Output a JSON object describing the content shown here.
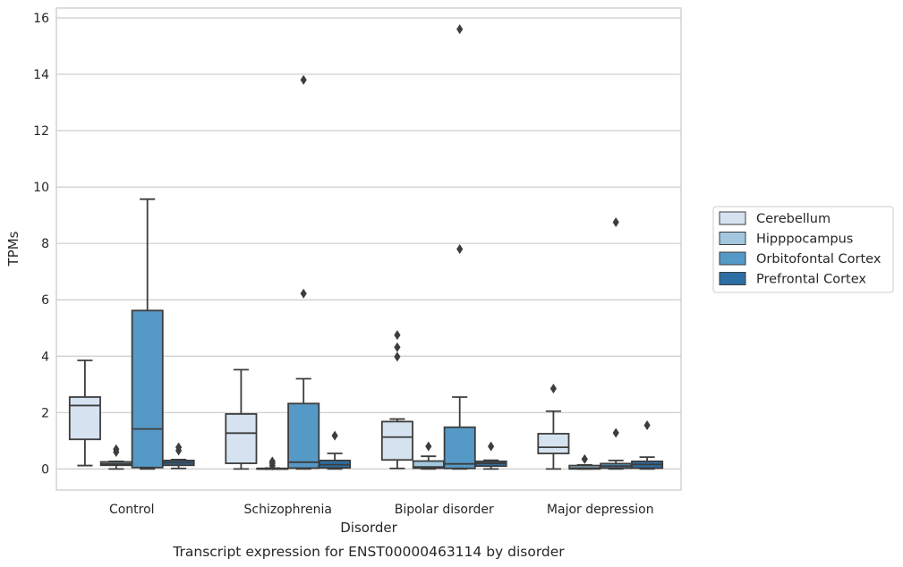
{
  "chart_data": {
    "type": "box",
    "caption": "Transcript expression for ENST00000463114 by disorder",
    "xlabel": "Disorder",
    "ylabel": "TPMs",
    "ylim": [
      -0.75,
      16.35
    ],
    "yticks": [
      0,
      2,
      4,
      6,
      8,
      10,
      12,
      14,
      16
    ],
    "grid": "horizontal",
    "legend_position": "right",
    "categories": [
      "Control",
      "Schizophrenia",
      "Bipolar disorder",
      "Major depression"
    ],
    "series": [
      {
        "name": "Cerebellum",
        "color": "#d5e3f0",
        "boxes": [
          {
            "whisker_low": 0.12,
            "q1": 1.05,
            "median": 2.25,
            "q3": 2.55,
            "whisker_high": 3.85,
            "outliers": []
          },
          {
            "whisker_low": 0.0,
            "q1": 0.2,
            "median": 1.27,
            "q3": 1.95,
            "whisker_high": 3.52,
            "outliers": []
          },
          {
            "whisker_low": 0.02,
            "q1": 0.32,
            "median": 1.13,
            "q3": 1.68,
            "whisker_high": 1.77,
            "outliers": [
              3.98,
              4.32,
              4.75
            ]
          },
          {
            "whisker_low": 0.0,
            "q1": 0.55,
            "median": 0.77,
            "q3": 1.25,
            "whisker_high": 2.05,
            "outliers": [
              2.85
            ]
          }
        ]
      },
      {
        "name": "Hipppocampus",
        "color": "#a2c7df",
        "boxes": [
          {
            "whisker_low": 0.0,
            "q1": 0.13,
            "median": 0.18,
            "q3": 0.25,
            "whisker_high": 0.27,
            "outliers": [
              0.6,
              0.7
            ]
          },
          {
            "whisker_low": 0.0,
            "q1": 0.0,
            "median": 0.01,
            "q3": 0.02,
            "whisker_high": 0.03,
            "outliers": [
              0.12,
              0.2,
              0.27
            ]
          },
          {
            "whisker_low": 0.0,
            "q1": 0.03,
            "median": 0.07,
            "q3": 0.28,
            "whisker_high": 0.45,
            "outliers": [
              0.8
            ]
          },
          {
            "whisker_low": 0.0,
            "q1": 0.0,
            "median": 0.03,
            "q3": 0.12,
            "whisker_high": 0.14,
            "outliers": [
              0.35
            ]
          }
        ]
      },
      {
        "name": "Orbitofontal Cortex",
        "color": "#5599c7",
        "boxes": [
          {
            "whisker_low": 0.0,
            "q1": 0.05,
            "median": 1.42,
            "q3": 5.62,
            "whisker_high": 9.57,
            "outliers": []
          },
          {
            "whisker_low": 0.0,
            "q1": 0.03,
            "median": 0.24,
            "q3": 2.32,
            "whisker_high": 3.2,
            "outliers": [
              6.22,
              13.8
            ]
          },
          {
            "whisker_low": 0.0,
            "q1": 0.02,
            "median": 0.18,
            "q3": 1.48,
            "whisker_high": 2.55,
            "outliers": [
              7.8,
              15.6
            ]
          },
          {
            "whisker_low": 0.0,
            "q1": 0.03,
            "median": 0.1,
            "q3": 0.19,
            "whisker_high": 0.3,
            "outliers": [
              1.28,
              8.75
            ]
          }
        ]
      },
      {
        "name": "Prefrontal Cortex",
        "color": "#2d6ea4",
        "boxes": [
          {
            "whisker_low": 0.02,
            "q1": 0.13,
            "median": 0.22,
            "q3": 0.3,
            "whisker_high": 0.33,
            "outliers": [
              0.65,
              0.77
            ]
          },
          {
            "whisker_low": 0.0,
            "q1": 0.04,
            "median": 0.15,
            "q3": 0.3,
            "whisker_high": 0.55,
            "outliers": [
              1.18
            ]
          },
          {
            "whisker_low": 0.0,
            "q1": 0.1,
            "median": 0.2,
            "q3": 0.27,
            "whisker_high": 0.31,
            "outliers": [
              0.8
            ]
          },
          {
            "whisker_low": 0.0,
            "q1": 0.03,
            "median": 0.16,
            "q3": 0.27,
            "whisker_high": 0.42,
            "outliers": [
              1.55
            ]
          }
        ]
      }
    ]
  }
}
